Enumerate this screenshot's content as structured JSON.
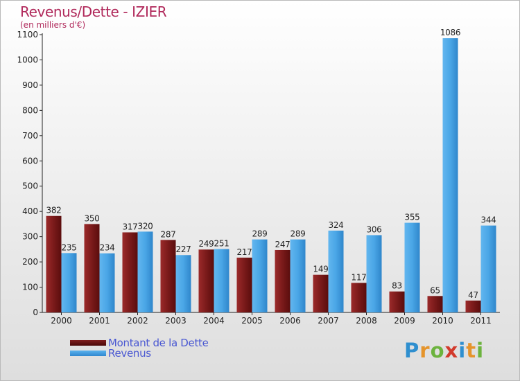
{
  "chart_data": {
    "type": "bar",
    "title": "Revenus/Dette - IZIER",
    "subtitle": "(en milliers d'€)",
    "categories": [
      "2000",
      "2001",
      "2002",
      "2003",
      "2004",
      "2005",
      "2006",
      "2007",
      "2008",
      "2009",
      "2010",
      "2011"
    ],
    "series": [
      {
        "name": "Montant de la Dette",
        "color": "#7e1d1d",
        "values": [
          382,
          350,
          317,
          287,
          249,
          217,
          247,
          149,
          117,
          83,
          65,
          47
        ]
      },
      {
        "name": "Revenus",
        "color": "#4aa6e6",
        "values": [
          235,
          234,
          320,
          227,
          251,
          289,
          289,
          324,
          306,
          355,
          1086,
          344
        ]
      }
    ],
    "ylim": [
      0,
      1100
    ],
    "yticks": [
      0,
      100,
      200,
      300,
      400,
      500,
      600,
      700,
      800,
      900,
      1000,
      1100
    ],
    "grid": false,
    "legend_position": "bottom-left"
  },
  "logo": {
    "letters": [
      "P",
      "r",
      "o",
      "x",
      "i",
      "t",
      "i"
    ]
  }
}
